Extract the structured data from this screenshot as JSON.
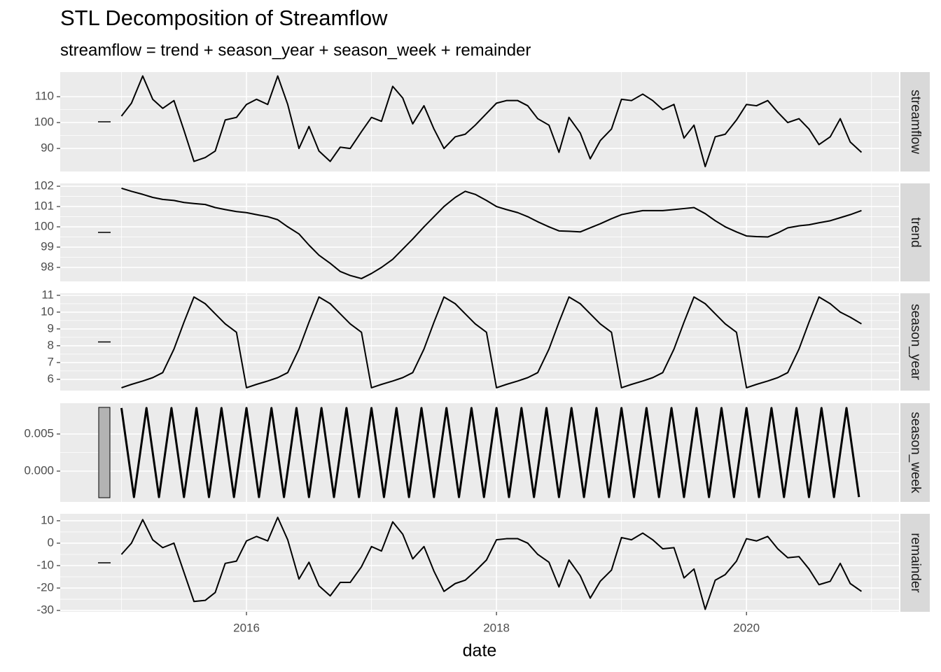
{
  "chart_data": {
    "type": "line",
    "title": "STL Decomposition of Streamflow",
    "subtitle": "streamflow = trend + season_year + season_week + remainder",
    "xlabel": "date",
    "xlim": [
      2014.51,
      2021.22
    ],
    "xticks": [
      2016,
      2018,
      2020
    ],
    "color": "#000000",
    "grid": true,
    "x": [
      2015.0,
      2015.08,
      2015.17,
      2015.25,
      2015.33,
      2015.42,
      2015.5,
      2015.58,
      2015.67,
      2015.75,
      2015.83,
      2015.92,
      2016.0,
      2016.08,
      2016.17,
      2016.25,
      2016.33,
      2016.42,
      2016.5,
      2016.58,
      2016.67,
      2016.75,
      2016.83,
      2016.92,
      2017.0,
      2017.08,
      2017.17,
      2017.25,
      2017.33,
      2017.42,
      2017.5,
      2017.58,
      2017.67,
      2017.75,
      2017.83,
      2017.92,
      2018.0,
      2018.08,
      2018.17,
      2018.25,
      2018.33,
      2018.42,
      2018.5,
      2018.58,
      2018.67,
      2018.75,
      2018.83,
      2018.92,
      2019.0,
      2019.08,
      2019.17,
      2019.25,
      2019.33,
      2019.42,
      2019.5,
      2019.58,
      2019.67,
      2019.75,
      2019.83,
      2019.92,
      2020.0,
      2020.08,
      2020.17,
      2020.25,
      2020.33,
      2020.42,
      2020.5,
      2020.58,
      2020.67,
      2020.75,
      2020.83,
      2020.92
    ],
    "panels": [
      {
        "facet": "streamflow",
        "ylim": [
          81.1,
          119.5
        ],
        "yticks": [
          90,
          100,
          110
        ],
        "values": [
          102.5,
          107.5,
          118,
          109,
          105.5,
          108.5,
          97,
          85,
          86.5,
          89,
          101,
          102,
          107,
          109,
          107,
          118,
          107,
          90,
          98.5,
          89,
          85,
          90.5,
          90,
          96.5,
          102,
          100.5,
          114,
          109.5,
          99.5,
          106.5,
          97.5,
          90,
          94.5,
          95.5,
          99,
          103.5,
          107.5,
          108.5,
          108.5,
          106.5,
          101.5,
          99,
          88.5,
          102,
          96,
          86,
          93,
          97.5,
          109,
          108.5,
          111,
          108.5,
          105,
          107,
          94,
          99,
          83,
          94.5,
          95.5,
          101,
          107,
          106.5,
          108.5,
          104,
          100,
          101.5,
          97.5,
          91.5,
          94.5,
          101.5,
          92.5,
          88.5
        ]
      },
      {
        "facet": "trend",
        "ylim": [
          97.31,
          102.14
        ],
        "yticks": [
          98,
          99,
          100,
          101,
          102
        ],
        "values": [
          101.9,
          101.75,
          101.6,
          101.45,
          101.35,
          101.3,
          101.2,
          101.15,
          101.1,
          100.95,
          100.85,
          100.75,
          100.7,
          100.6,
          100.5,
          100.35,
          100.0,
          99.65,
          99.1,
          98.6,
          98.2,
          97.8,
          97.6,
          97.45,
          97.7,
          98.0,
          98.4,
          98.9,
          99.4,
          100.0,
          100.5,
          101.0,
          101.45,
          101.75,
          101.6,
          101.3,
          101.0,
          100.85,
          100.7,
          100.5,
          100.25,
          100.0,
          99.8,
          99.78,
          99.75,
          99.95,
          100.15,
          100.4,
          100.6,
          100.7,
          100.8,
          100.8,
          100.8,
          100.85,
          100.9,
          100.95,
          100.65,
          100.3,
          100.0,
          99.75,
          99.55,
          99.52,
          99.5,
          99.7,
          99.95,
          100.05,
          100.1,
          100.2,
          100.3,
          100.45,
          100.6,
          100.8
        ]
      },
      {
        "facet": "season_year",
        "ylim": [
          5.33,
          11.12
        ],
        "yticks": [
          6,
          7,
          8,
          9,
          10,
          11
        ],
        "values": [
          5.5,
          5.7,
          5.9,
          6.1,
          6.4,
          7.8,
          9.4,
          10.9,
          10.5,
          9.9,
          9.3,
          8.8,
          5.5,
          5.7,
          5.9,
          6.1,
          6.4,
          7.8,
          9.4,
          10.9,
          10.5,
          9.9,
          9.3,
          8.8,
          5.5,
          5.7,
          5.9,
          6.1,
          6.4,
          7.8,
          9.4,
          10.9,
          10.5,
          9.9,
          9.3,
          8.8,
          5.5,
          5.7,
          5.9,
          6.1,
          6.4,
          7.8,
          9.4,
          10.9,
          10.5,
          9.9,
          9.3,
          8.8,
          5.5,
          5.7,
          5.9,
          6.1,
          6.4,
          7.8,
          9.4,
          10.9,
          10.5,
          9.9,
          9.3,
          8.8,
          5.5,
          5.7,
          5.9,
          6.1,
          6.4,
          7.8,
          9.4,
          10.9,
          10.5,
          10.0,
          9.7,
          9.3
        ]
      },
      {
        "facet": "season_week",
        "ylim": [
          -0.00415,
          0.00915
        ],
        "yticks": [
          {
            "value": 0,
            "label": "0.000"
          },
          0.005
        ],
        "x": [
          2015.0,
          2015.1,
          2015.2,
          2015.3,
          2015.4,
          2015.5,
          2015.6,
          2015.7,
          2015.8,
          2015.9,
          2016.0,
          2016.1,
          2016.2,
          2016.3,
          2016.4,
          2016.5,
          2016.6,
          2016.7,
          2016.8,
          2016.9,
          2017.0,
          2017.1,
          2017.2,
          2017.3,
          2017.4,
          2017.5,
          2017.6,
          2017.7,
          2017.8,
          2017.9,
          2018.0,
          2018.1,
          2018.2,
          2018.3,
          2018.4,
          2018.5,
          2018.6,
          2018.7,
          2018.8,
          2018.9,
          2019.0,
          2019.1,
          2019.2,
          2019.3,
          2019.4,
          2019.5,
          2019.6,
          2019.7,
          2019.8,
          2019.9,
          2020.0,
          2020.1,
          2020.2,
          2020.3,
          2020.4,
          2020.5,
          2020.6,
          2020.7,
          2020.8,
          2020.9
        ],
        "values": [
          0.0085,
          -0.0035,
          0.0085,
          -0.0035,
          0.0085,
          -0.0035,
          0.0085,
          -0.0035,
          0.0085,
          -0.0035,
          0.0085,
          -0.0035,
          0.0085,
          -0.0035,
          0.0085,
          -0.0035,
          0.0085,
          -0.0035,
          0.0085,
          -0.0035,
          0.0085,
          -0.0035,
          0.0085,
          -0.0035,
          0.0085,
          -0.0035,
          0.0085,
          -0.0035,
          0.0085,
          -0.0035,
          0.0085,
          -0.0035,
          0.0085,
          -0.0035,
          0.0085,
          -0.0035,
          0.0085,
          -0.0035,
          0.0085,
          -0.0035,
          0.0085,
          -0.0035,
          0.0085,
          -0.0035,
          0.0085,
          -0.0035,
          0.0085,
          -0.0035,
          0.0085,
          -0.0035,
          0.0085,
          -0.0035,
          0.0085,
          -0.0035,
          0.0085,
          -0.0035,
          0.0085,
          -0.0035,
          0.0085,
          -0.0035
        ]
      },
      {
        "facet": "remainder",
        "ylim": [
          -30.6,
          13.1
        ],
        "yticks": [
          -30,
          -20,
          -10,
          0,
          10
        ],
        "values": [
          -5,
          0,
          10.5,
          1.5,
          -2,
          0,
          -13,
          -26,
          -25.5,
          -22,
          -9,
          -8,
          1,
          3,
          1,
          11.5,
          1.5,
          -16,
          -8.5,
          -19,
          -23.5,
          -17.5,
          -17.5,
          -10.5,
          -1.5,
          -3.5,
          9.5,
          4,
          -7,
          -1.5,
          -12.5,
          -21.5,
          -18,
          -16.5,
          -12.5,
          -7.5,
          1.5,
          2,
          2,
          0,
          -5,
          -8.5,
          -19.5,
          -7.5,
          -14.5,
          -24.5,
          -17,
          -12,
          2.5,
          1.5,
          4.5,
          1.5,
          -2.5,
          -2,
          -15.5,
          -11.5,
          -29.5,
          -16.5,
          -14,
          -8,
          2,
          1,
          3,
          -2.5,
          -6.5,
          -6,
          -11.5,
          -18.5,
          -17,
          -9,
          -18,
          -21.5
        ]
      }
    ]
  }
}
